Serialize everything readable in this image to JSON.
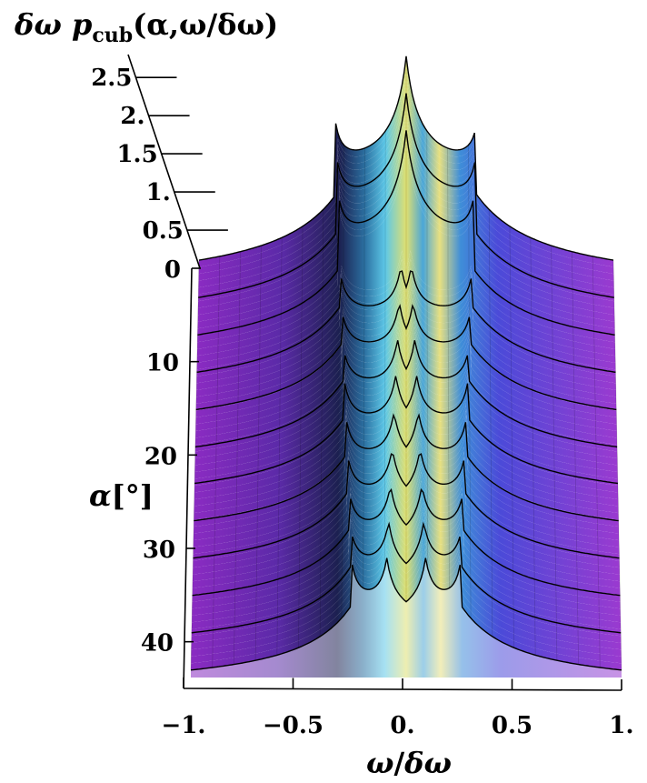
{
  "chart_data": {
    "type": "surface3d",
    "title": "",
    "zlabel": {
      "prefix": "δω ",
      "p": "p",
      "sub": "cub",
      "suffix": "(α,ω/δω)"
    },
    "ylabel": {
      "main": "α",
      "unit": "[°]"
    },
    "xlabel": {
      "num": "ω",
      "slash": "/",
      "den": "δω"
    },
    "x_ticks": [
      "−1.",
      "−0.5",
      "0.",
      "0.5",
      "1."
    ],
    "x_values": [
      -1,
      -0.5,
      0,
      0.5,
      1
    ],
    "y_ticks": [
      "0",
      "10",
      "20",
      "30",
      "40"
    ],
    "y_values": [
      0,
      10,
      20,
      30,
      40
    ],
    "z_ticks": [
      "0.5",
      "1.",
      "1.5",
      "2.",
      "2.5"
    ],
    "z_values": [
      0.5,
      1,
      1.5,
      2,
      2.5
    ],
    "xlim": [
      -1,
      1
    ],
    "ylim": [
      0,
      45
    ],
    "zlim": [
      0,
      2.8
    ],
    "alpha_slices": [
      0,
      4.1,
      8.2,
      12.3,
      16.4,
      20.5,
      24.5,
      28.6,
      32.7,
      36.8,
      40.9,
      45
    ],
    "peak_positions": {
      "outer_at_alpha_0": 0.34,
      "outer_at_alpha_45": 0.25,
      "inner_at_alpha_0": 0.0,
      "inner_at_alpha_45": 0.09
    },
    "colors": {
      "low": "#7a1fb0",
      "mid_low": "#2a2a8c",
      "mid": "#4ab4e8",
      "mid_high": "#d8e070",
      "high": "#f09a30"
    }
  }
}
